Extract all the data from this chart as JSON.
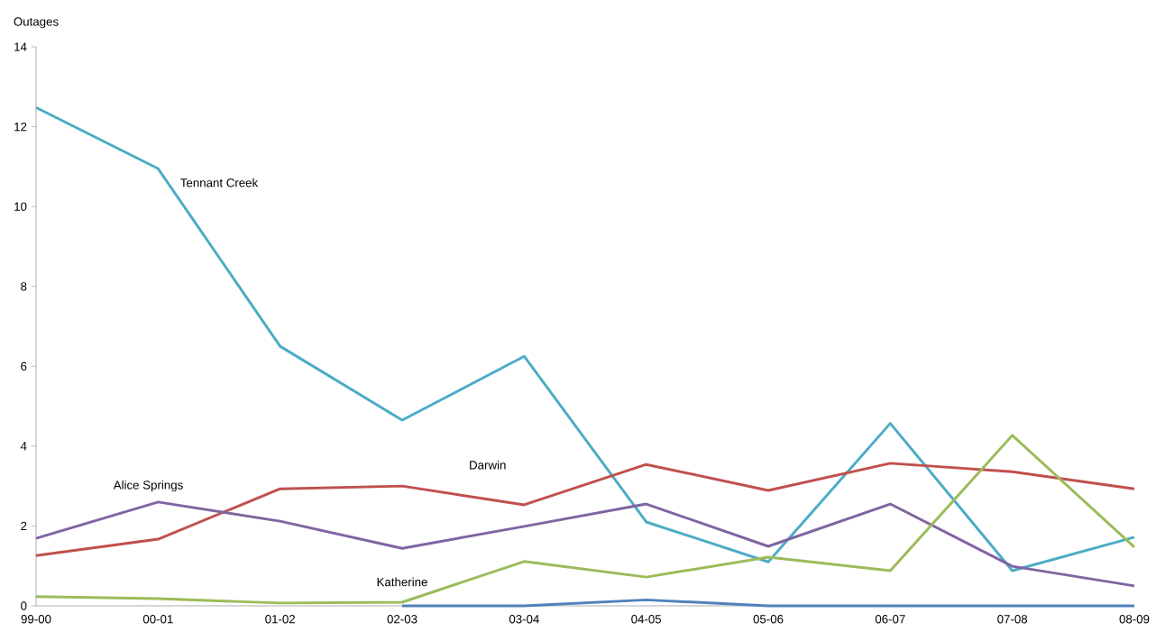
{
  "chart_data": {
    "type": "line",
    "ylabel": "Outages",
    "categories": [
      "99-00",
      "00-01",
      "01-02",
      "02-03",
      "03-04",
      "04-05",
      "05-06",
      "06-07",
      "07-08",
      "08-09"
    ],
    "ylim": [
      0,
      14
    ],
    "yticks": [
      0,
      2,
      4,
      6,
      8,
      10,
      12,
      14
    ],
    "grid": false,
    "legend": false,
    "marker": "none",
    "line_style": "solid",
    "series": [
      {
        "name": "Tennant Creek",
        "color": "#4bacc6",
        "values": [
          12.48,
          10.95,
          6.5,
          4.65,
          6.25,
          2.1,
          1.1,
          4.57,
          0.88,
          1.72
        ]
      },
      {
        "name": "Darwin",
        "color": "#c0504d",
        "values": [
          1.26,
          1.67,
          2.93,
          3.0,
          2.53,
          3.54,
          2.89,
          3.57,
          3.36,
          2.93
        ]
      },
      {
        "name": "Alice Springs",
        "color": "#8064a2",
        "values": [
          1.69,
          2.6,
          2.12,
          1.44,
          1.99,
          2.55,
          1.49,
          2.55,
          0.99,
          0.5
        ]
      },
      {
        "name": "Katherine",
        "color": "#9bbb59",
        "values": [
          0.23,
          0.18,
          0.07,
          0.09,
          1.11,
          0.72,
          1.22,
          0.88,
          4.27,
          1.47
        ]
      },
      {
        "color": "#4f81bd",
        "values": [
          null,
          null,
          null,
          0,
          0,
          0.15,
          0,
          0,
          0,
          0
        ]
      }
    ]
  }
}
